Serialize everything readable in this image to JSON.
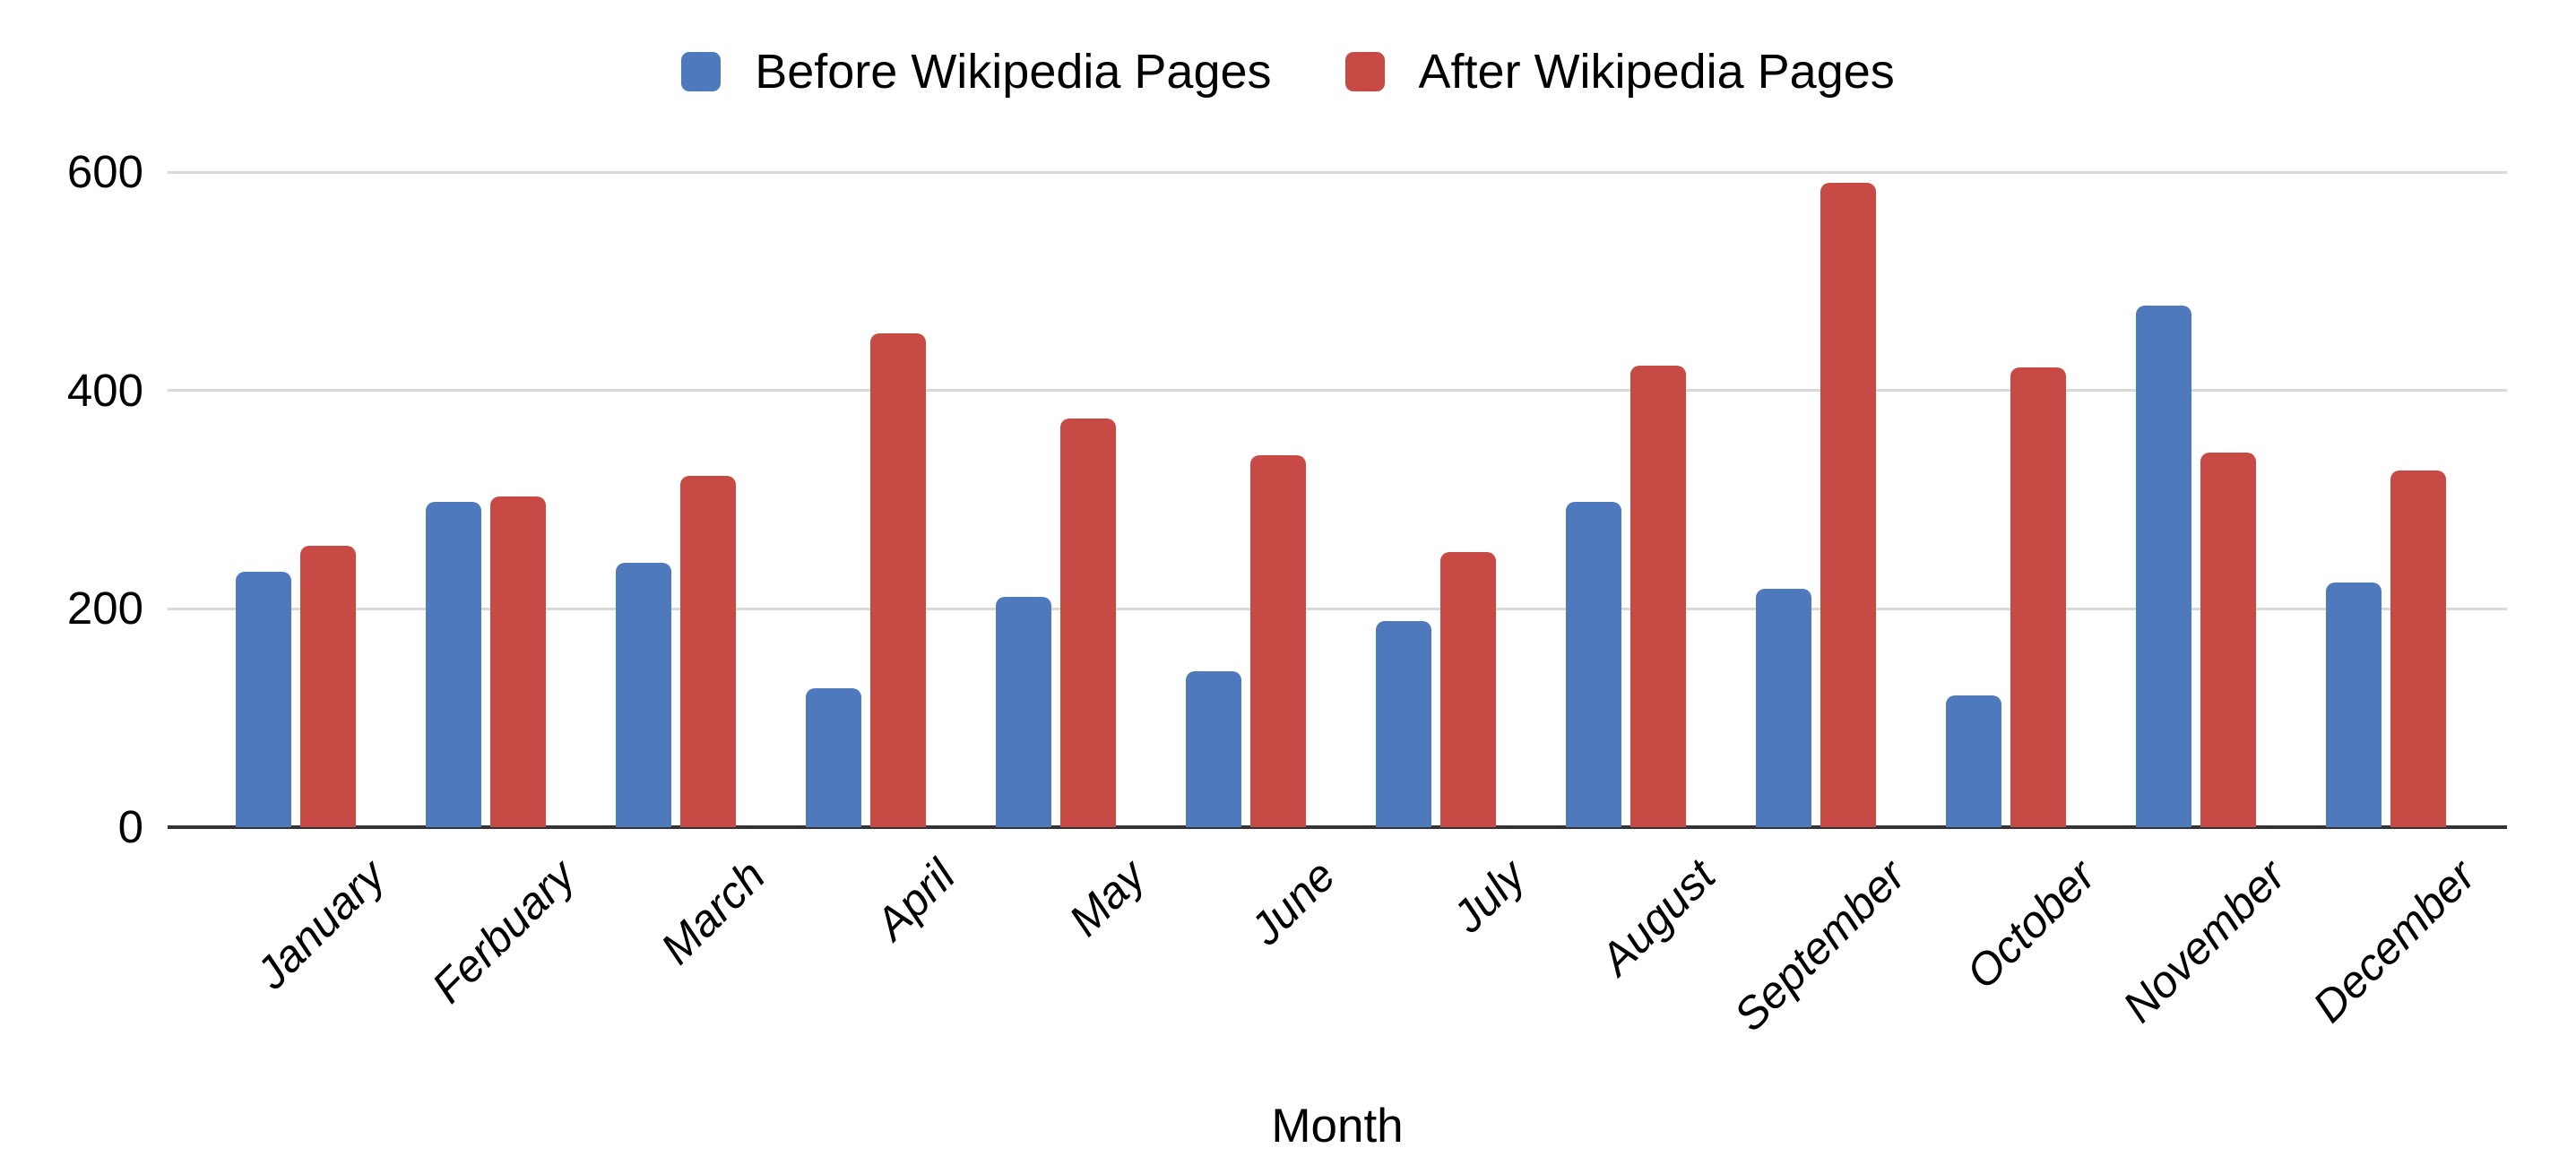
{
  "chart_data": {
    "type": "bar",
    "title": "",
    "xlabel": "Month",
    "ylabel": "",
    "ylim": [
      0,
      600
    ],
    "yticks": [
      0,
      200,
      400,
      600
    ],
    "grid": true,
    "legend_position": "top-center",
    "categories": [
      "January",
      "Ferbuary",
      "March",
      "April",
      "May",
      "June",
      "July",
      "August",
      "September",
      "October",
      "November",
      "December"
    ],
    "series": [
      {
        "name": "Before Wikipedia Pages",
        "color": "#4f79bd",
        "values": [
          234,
          298,
          242,
          127,
          211,
          143,
          189,
          298,
          218,
          121,
          478,
          224
        ]
      },
      {
        "name": "After Wikipedia Pages",
        "color": "#c74b44",
        "values": [
          258,
          303,
          322,
          452,
          374,
          341,
          252,
          423,
          590,
          421,
          343,
          327
        ]
      }
    ]
  },
  "colors": {
    "gridline": "#d9d9d9",
    "axis_line": "#333333",
    "text": "#000000",
    "background": "#ffffff"
  }
}
